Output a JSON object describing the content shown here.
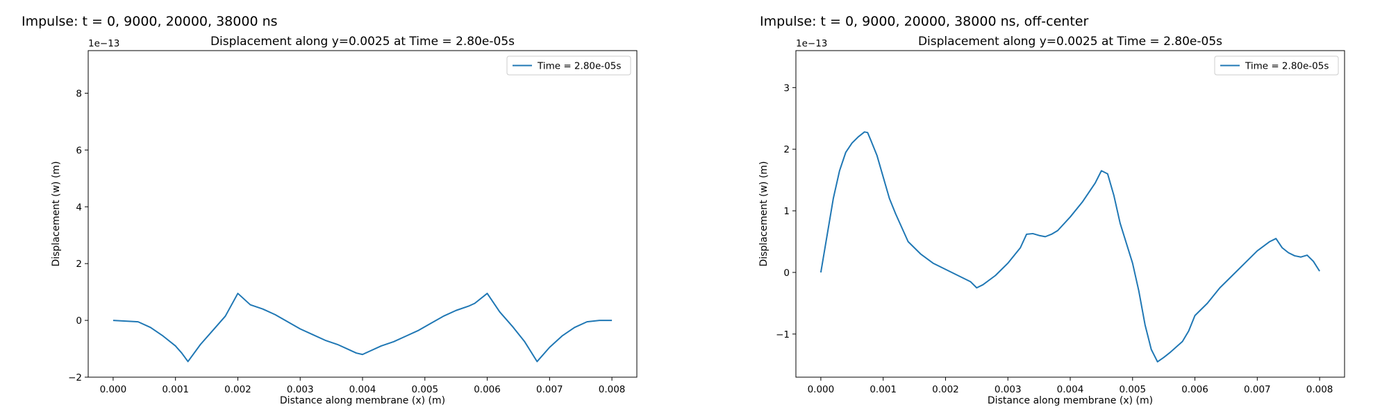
{
  "panels": [
    {
      "figure_title": "Impulse: t = 0, 9000, 20000, 38000 ns",
      "chart_data": {
        "type": "line",
        "title": "Displacement along y=0.0025 at Time = 2.80e-05s",
        "xlabel": "Distance along membrane (x) (m)",
        "ylabel": "Displacement (w) (m)",
        "y_offset_label": "1e−13",
        "xlim": [
          -0.0004,
          0.0084
        ],
        "ylim": [
          -2.0,
          9.5
        ],
        "xticks": [
          0.0,
          0.001,
          0.002,
          0.003,
          0.004,
          0.005,
          0.006,
          0.007,
          0.008
        ],
        "xtick_labels": [
          "0.000",
          "0.001",
          "0.002",
          "0.003",
          "0.004",
          "0.005",
          "0.006",
          "0.007",
          "0.008"
        ],
        "yticks": [
          -2,
          0,
          2,
          4,
          6,
          8
        ],
        "ytick_labels": [
          "−2",
          "0",
          "2",
          "4",
          "6",
          "8"
        ],
        "grid": false,
        "legend_position": "upper right",
        "series": [
          {
            "name": "Time = 2.80e-05s",
            "color": "#1f77b4",
            "x": [
              0.0,
              0.0004,
              0.0006,
              0.0008,
              0.001,
              0.0011,
              0.0012,
              0.0014,
              0.0016,
              0.0018,
              0.002,
              0.0022,
              0.0024,
              0.0026,
              0.0028,
              0.003,
              0.0032,
              0.0034,
              0.0036,
              0.0038,
              0.0039,
              0.004,
              0.0041,
              0.0043,
              0.0045,
              0.0047,
              0.0049,
              0.0051,
              0.0053,
              0.0055,
              0.0057,
              0.0058,
              0.006,
              0.0062,
              0.0064,
              0.0066,
              0.0067,
              0.0068,
              0.007,
              0.0072,
              0.0074,
              0.0076,
              0.0078,
              0.008
            ],
            "y": [
              0.0,
              -0.05,
              -0.25,
              -0.55,
              -0.9,
              -1.15,
              -1.45,
              -0.85,
              -0.35,
              0.15,
              0.95,
              0.55,
              0.4,
              0.2,
              -0.05,
              -0.3,
              -0.5,
              -0.7,
              -0.85,
              -1.05,
              -1.15,
              -1.2,
              -1.1,
              -0.9,
              -0.75,
              -0.55,
              -0.35,
              -0.1,
              0.15,
              0.35,
              0.5,
              0.6,
              0.95,
              0.3,
              -0.2,
              -0.75,
              -1.1,
              -1.45,
              -0.95,
              -0.55,
              -0.25,
              -0.05,
              0.0,
              0.0
            ]
          }
        ]
      }
    },
    {
      "figure_title": "Impulse: t = 0, 9000, 20000, 38000 ns, off-center",
      "chart_data": {
        "type": "line",
        "title": "Displacement along y=0.0025 at Time = 2.80e-05s",
        "xlabel": "Distance along membrane (x) (m)",
        "ylabel": "Displacement (w) (m)",
        "y_offset_label": "1e−13",
        "xlim": [
          -0.0004,
          0.0084
        ],
        "ylim": [
          -1.7,
          3.6
        ],
        "xticks": [
          0.0,
          0.001,
          0.002,
          0.003,
          0.004,
          0.005,
          0.006,
          0.007,
          0.008
        ],
        "xtick_labels": [
          "0.000",
          "0.001",
          "0.002",
          "0.003",
          "0.004",
          "0.005",
          "0.006",
          "0.007",
          "0.008"
        ],
        "yticks": [
          -1,
          0,
          1,
          2,
          3
        ],
        "ytick_labels": [
          "−1",
          "0",
          "1",
          "2",
          "3"
        ],
        "grid": false,
        "legend_position": "upper right",
        "series": [
          {
            "name": "Time = 2.80e-05s",
            "color": "#1f77b4",
            "x": [
              0.0,
              0.0001,
              0.0002,
              0.0003,
              0.0004,
              0.0005,
              0.0006,
              0.0007,
              0.00075,
              0.0008,
              0.0009,
              0.001,
              0.0011,
              0.0012,
              0.0014,
              0.0016,
              0.0018,
              0.002,
              0.0022,
              0.0024,
              0.0025,
              0.0026,
              0.0028,
              0.003,
              0.0032,
              0.0033,
              0.0034,
              0.0035,
              0.0036,
              0.0037,
              0.0038,
              0.004,
              0.0042,
              0.0044,
              0.0045,
              0.0046,
              0.0047,
              0.0048,
              0.005,
              0.0051,
              0.0052,
              0.0053,
              0.0054,
              0.0055,
              0.0056,
              0.0058,
              0.0059,
              0.006,
              0.0062,
              0.0064,
              0.0066,
              0.0068,
              0.007,
              0.0072,
              0.0073,
              0.0074,
              0.0075,
              0.0076,
              0.0077,
              0.0078,
              0.0079,
              0.008
            ],
            "y": [
              0.0,
              0.6,
              1.2,
              1.65,
              1.95,
              2.1,
              2.2,
              2.28,
              2.27,
              2.15,
              1.9,
              1.55,
              1.2,
              0.95,
              0.5,
              0.3,
              0.15,
              0.05,
              -0.05,
              -0.15,
              -0.25,
              -0.2,
              -0.05,
              0.15,
              0.4,
              0.62,
              0.63,
              0.6,
              0.58,
              0.62,
              0.68,
              0.9,
              1.15,
              1.45,
              1.65,
              1.6,
              1.25,
              0.8,
              0.15,
              -0.3,
              -0.85,
              -1.25,
              -1.45,
              -1.38,
              -1.3,
              -1.12,
              -0.95,
              -0.7,
              -0.5,
              -0.25,
              -0.05,
              0.15,
              0.35,
              0.5,
              0.55,
              0.4,
              0.32,
              0.27,
              0.25,
              0.28,
              0.18,
              0.02
            ]
          }
        ]
      }
    }
  ]
}
